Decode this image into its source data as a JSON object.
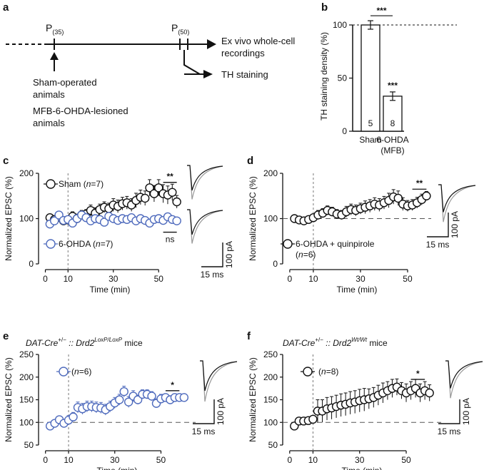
{
  "panel_a": {
    "label": "a",
    "timepoint1": "P",
    "timepoint1_sub": "(35)",
    "timepoint2": "P",
    "timepoint2_sub": "(50)",
    "exvivo_line1": "Ex vivo  whole-cell",
    "exvivo_line2": "recordings",
    "th_staining": "TH staining",
    "sham_line1": "Sham-operated",
    "sham_line2": "animals",
    "mfb_line1": "MFB-6-OHDA-lesioned",
    "mfb_line2": "animals"
  },
  "colors": {
    "black": "#111111",
    "blue": "#4f6bbd",
    "gray_trace": "#8a8a8a",
    "dashed": "#555555"
  },
  "chart_data": [
    {
      "panel": "b",
      "type": "bar",
      "ylabel": "TH staining density (%)",
      "ylim": [
        0,
        100
      ],
      "yticks": [
        0,
        50,
        100
      ],
      "reference_line": 100,
      "categories": [
        "Sham",
        "6-OHDA"
      ],
      "category_sublabels": [
        "",
        "(MFB)"
      ],
      "values": [
        100,
        33
      ],
      "errors": [
        4,
        4
      ],
      "n": [
        "5",
        "8"
      ],
      "bar_stars": [
        "",
        "***"
      ],
      "comparison_star": "***"
    },
    {
      "panel": "c",
      "type": "scatter",
      "xlabel": "Time (min)",
      "ylabel": "Normalized EPSC (%)",
      "xlim": [
        -3,
        60
      ],
      "ylim": [
        0,
        200
      ],
      "xticks": [
        0,
        10,
        30,
        50
      ],
      "yticks": [
        0,
        100,
        200
      ],
      "baseline": null,
      "drug_onset": 10,
      "series": [
        {
          "name": "Sham",
          "n_label": "7",
          "color": "black",
          "x": [
            2,
            4,
            6,
            8,
            10,
            12,
            14,
            16,
            18,
            20,
            22,
            24,
            26,
            28,
            30,
            32,
            34,
            36,
            38,
            40,
            42,
            44,
            46,
            48,
            50,
            52,
            54,
            56,
            58
          ],
          "y": [
            102,
            98,
            103,
            95,
            97,
            105,
            100,
            108,
            110,
            118,
            112,
            120,
            125,
            122,
            130,
            127,
            133,
            135,
            130,
            140,
            147,
            145,
            168,
            155,
            168,
            155,
            152,
            158,
            137
          ],
          "err": [
            8,
            8,
            8,
            8,
            8,
            10,
            10,
            10,
            10,
            12,
            12,
            12,
            12,
            12,
            14,
            14,
            14,
            14,
            14,
            16,
            16,
            16,
            18,
            18,
            18,
            20,
            20,
            18,
            14
          ]
        },
        {
          "name": "6-OHDA",
          "n_label": "7",
          "color": "blue",
          "x": [
            2,
            4,
            6,
            8,
            10,
            12,
            14,
            16,
            18,
            20,
            22,
            24,
            26,
            28,
            30,
            32,
            34,
            36,
            38,
            40,
            42,
            44,
            46,
            48,
            50,
            52,
            54,
            56,
            58
          ],
          "y": [
            88,
            95,
            108,
            96,
            98,
            90,
            100,
            108,
            102,
            95,
            100,
            98,
            92,
            105,
            100,
            96,
            100,
            98,
            102,
            95,
            100,
            96,
            90,
            98,
            100,
            96,
            104,
            98,
            95
          ],
          "err": [
            8,
            8,
            8,
            8,
            8,
            8,
            8,
            8,
            8,
            8,
            8,
            8,
            8,
            8,
            8,
            8,
            8,
            8,
            8,
            8,
            8,
            8,
            8,
            8,
            8,
            8,
            8,
            8,
            8
          ]
        }
      ],
      "significance": [
        {
          "label": "**",
          "x1": 52,
          "x2": 58,
          "y": 180
        },
        {
          "label": "ns",
          "x1": 52,
          "x2": 58,
          "y": 70
        }
      ],
      "scale_bars": [
        "100 pA",
        "15 ms"
      ]
    },
    {
      "panel": "d",
      "type": "scatter",
      "xlabel": "Time (min)",
      "ylabel": "Normalized EPSC (%)",
      "xlim": [
        -3,
        60
      ],
      "ylim": [
        0,
        200
      ],
      "xticks": [
        0,
        10,
        30,
        50
      ],
      "yticks": [
        0,
        100,
        200
      ],
      "baseline": 100,
      "drug_onset": 10,
      "series": [
        {
          "name": "6-OHDA + quinpirole",
          "n_label": "6",
          "color": "black",
          "x": [
            2,
            4,
            6,
            8,
            10,
            12,
            14,
            16,
            18,
            20,
            22,
            24,
            26,
            28,
            30,
            32,
            34,
            36,
            38,
            40,
            42,
            44,
            46,
            48,
            50,
            52,
            54,
            56,
            58
          ],
          "y": [
            100,
            97,
            95,
            98,
            102,
            108,
            112,
            118,
            115,
            110,
            108,
            115,
            120,
            118,
            122,
            125,
            128,
            132,
            130,
            135,
            140,
            148,
            145,
            132,
            128,
            130,
            135,
            142,
            150
          ],
          "err": [
            6,
            6,
            6,
            6,
            8,
            10,
            10,
            10,
            10,
            10,
            10,
            12,
            12,
            12,
            12,
            14,
            14,
            14,
            14,
            14,
            16,
            16,
            16,
            14,
            12,
            12,
            12,
            12,
            10
          ]
        }
      ],
      "significance": [
        {
          "label": "**",
          "x1": 52,
          "x2": 58,
          "y": 165
        }
      ],
      "scale_bars": [
        "100 pA",
        "15 ms"
      ]
    },
    {
      "panel": "e",
      "type": "scatter",
      "title": "DAT-Cre+/− :: Drd2LoxP/LoxP mice",
      "xlabel": "Time (min)",
      "ylabel": "Normalized EPSC (%)",
      "xlim": [
        -3,
        65
      ],
      "ylim": [
        50,
        250
      ],
      "xticks": [
        0,
        10,
        30,
        50
      ],
      "yticks": [
        50,
        100,
        150,
        200,
        250
      ],
      "baseline": 100,
      "drug_onset": 10,
      "series": [
        {
          "name": "",
          "n_label": "6",
          "color": "blue",
          "x": [
            2,
            4,
            6,
            8,
            10,
            12,
            14,
            16,
            18,
            20,
            22,
            24,
            26,
            28,
            30,
            32,
            34,
            36,
            38,
            40,
            42,
            44,
            46,
            48,
            50,
            52,
            54,
            56,
            58,
            60
          ],
          "y": [
            92,
            98,
            106,
            98,
            105,
            112,
            133,
            130,
            135,
            135,
            133,
            132,
            128,
            135,
            143,
            150,
            168,
            145,
            158,
            150,
            162,
            162,
            158,
            142,
            152,
            155,
            150,
            155,
            155,
            155
          ],
          "err": [
            6,
            6,
            8,
            8,
            10,
            10,
            12,
            12,
            12,
            12,
            12,
            12,
            12,
            12,
            12,
            12,
            12,
            12,
            12,
            10,
            10,
            10,
            10,
            10,
            10,
            8,
            8,
            6,
            6,
            6
          ]
        }
      ],
      "significance": [
        {
          "label": "*",
          "x1": 52,
          "x2": 58,
          "y": 170
        }
      ],
      "scale_bars": [
        "100 pA",
        "15 ms"
      ]
    },
    {
      "panel": "f",
      "type": "scatter",
      "title": "DAT-Cre+/− :: Drd2Wt/Wt mice",
      "xlabel": "Time (min)",
      "ylabel": "Normalized EPSC (%)",
      "xlim": [
        -3,
        65
      ],
      "ylim": [
        50,
        250
      ],
      "xticks": [
        0,
        10,
        30,
        50
      ],
      "yticks": [
        50,
        100,
        150,
        200,
        250
      ],
      "baseline": 100,
      "drug_onset": 10,
      "series": [
        {
          "name": "",
          "n_label": "8",
          "color": "black",
          "x": [
            2,
            4,
            6,
            8,
            10,
            12,
            14,
            16,
            18,
            20,
            22,
            24,
            26,
            28,
            30,
            32,
            34,
            36,
            38,
            40,
            42,
            44,
            46,
            48,
            50,
            52,
            54,
            56,
            58,
            60
          ],
          "y": [
            92,
            103,
            103,
            104,
            107,
            125,
            125,
            130,
            132,
            135,
            138,
            140,
            143,
            145,
            148,
            150,
            152,
            155,
            160,
            165,
            170,
            175,
            178,
            170,
            165,
            170,
            175,
            165,
            170,
            165
          ],
          "err": [
            6,
            6,
            6,
            6,
            8,
            25,
            25,
            25,
            25,
            25,
            25,
            25,
            25,
            25,
            25,
            25,
            22,
            22,
            22,
            22,
            20,
            20,
            18,
            18,
            20,
            20,
            20,
            20,
            20,
            18
          ]
        }
      ],
      "significance": [
        {
          "label": "*",
          "x1": 52,
          "x2": 58,
          "y": 195
        }
      ],
      "scale_bars": [
        "100 pA",
        "15 ms"
      ]
    }
  ]
}
